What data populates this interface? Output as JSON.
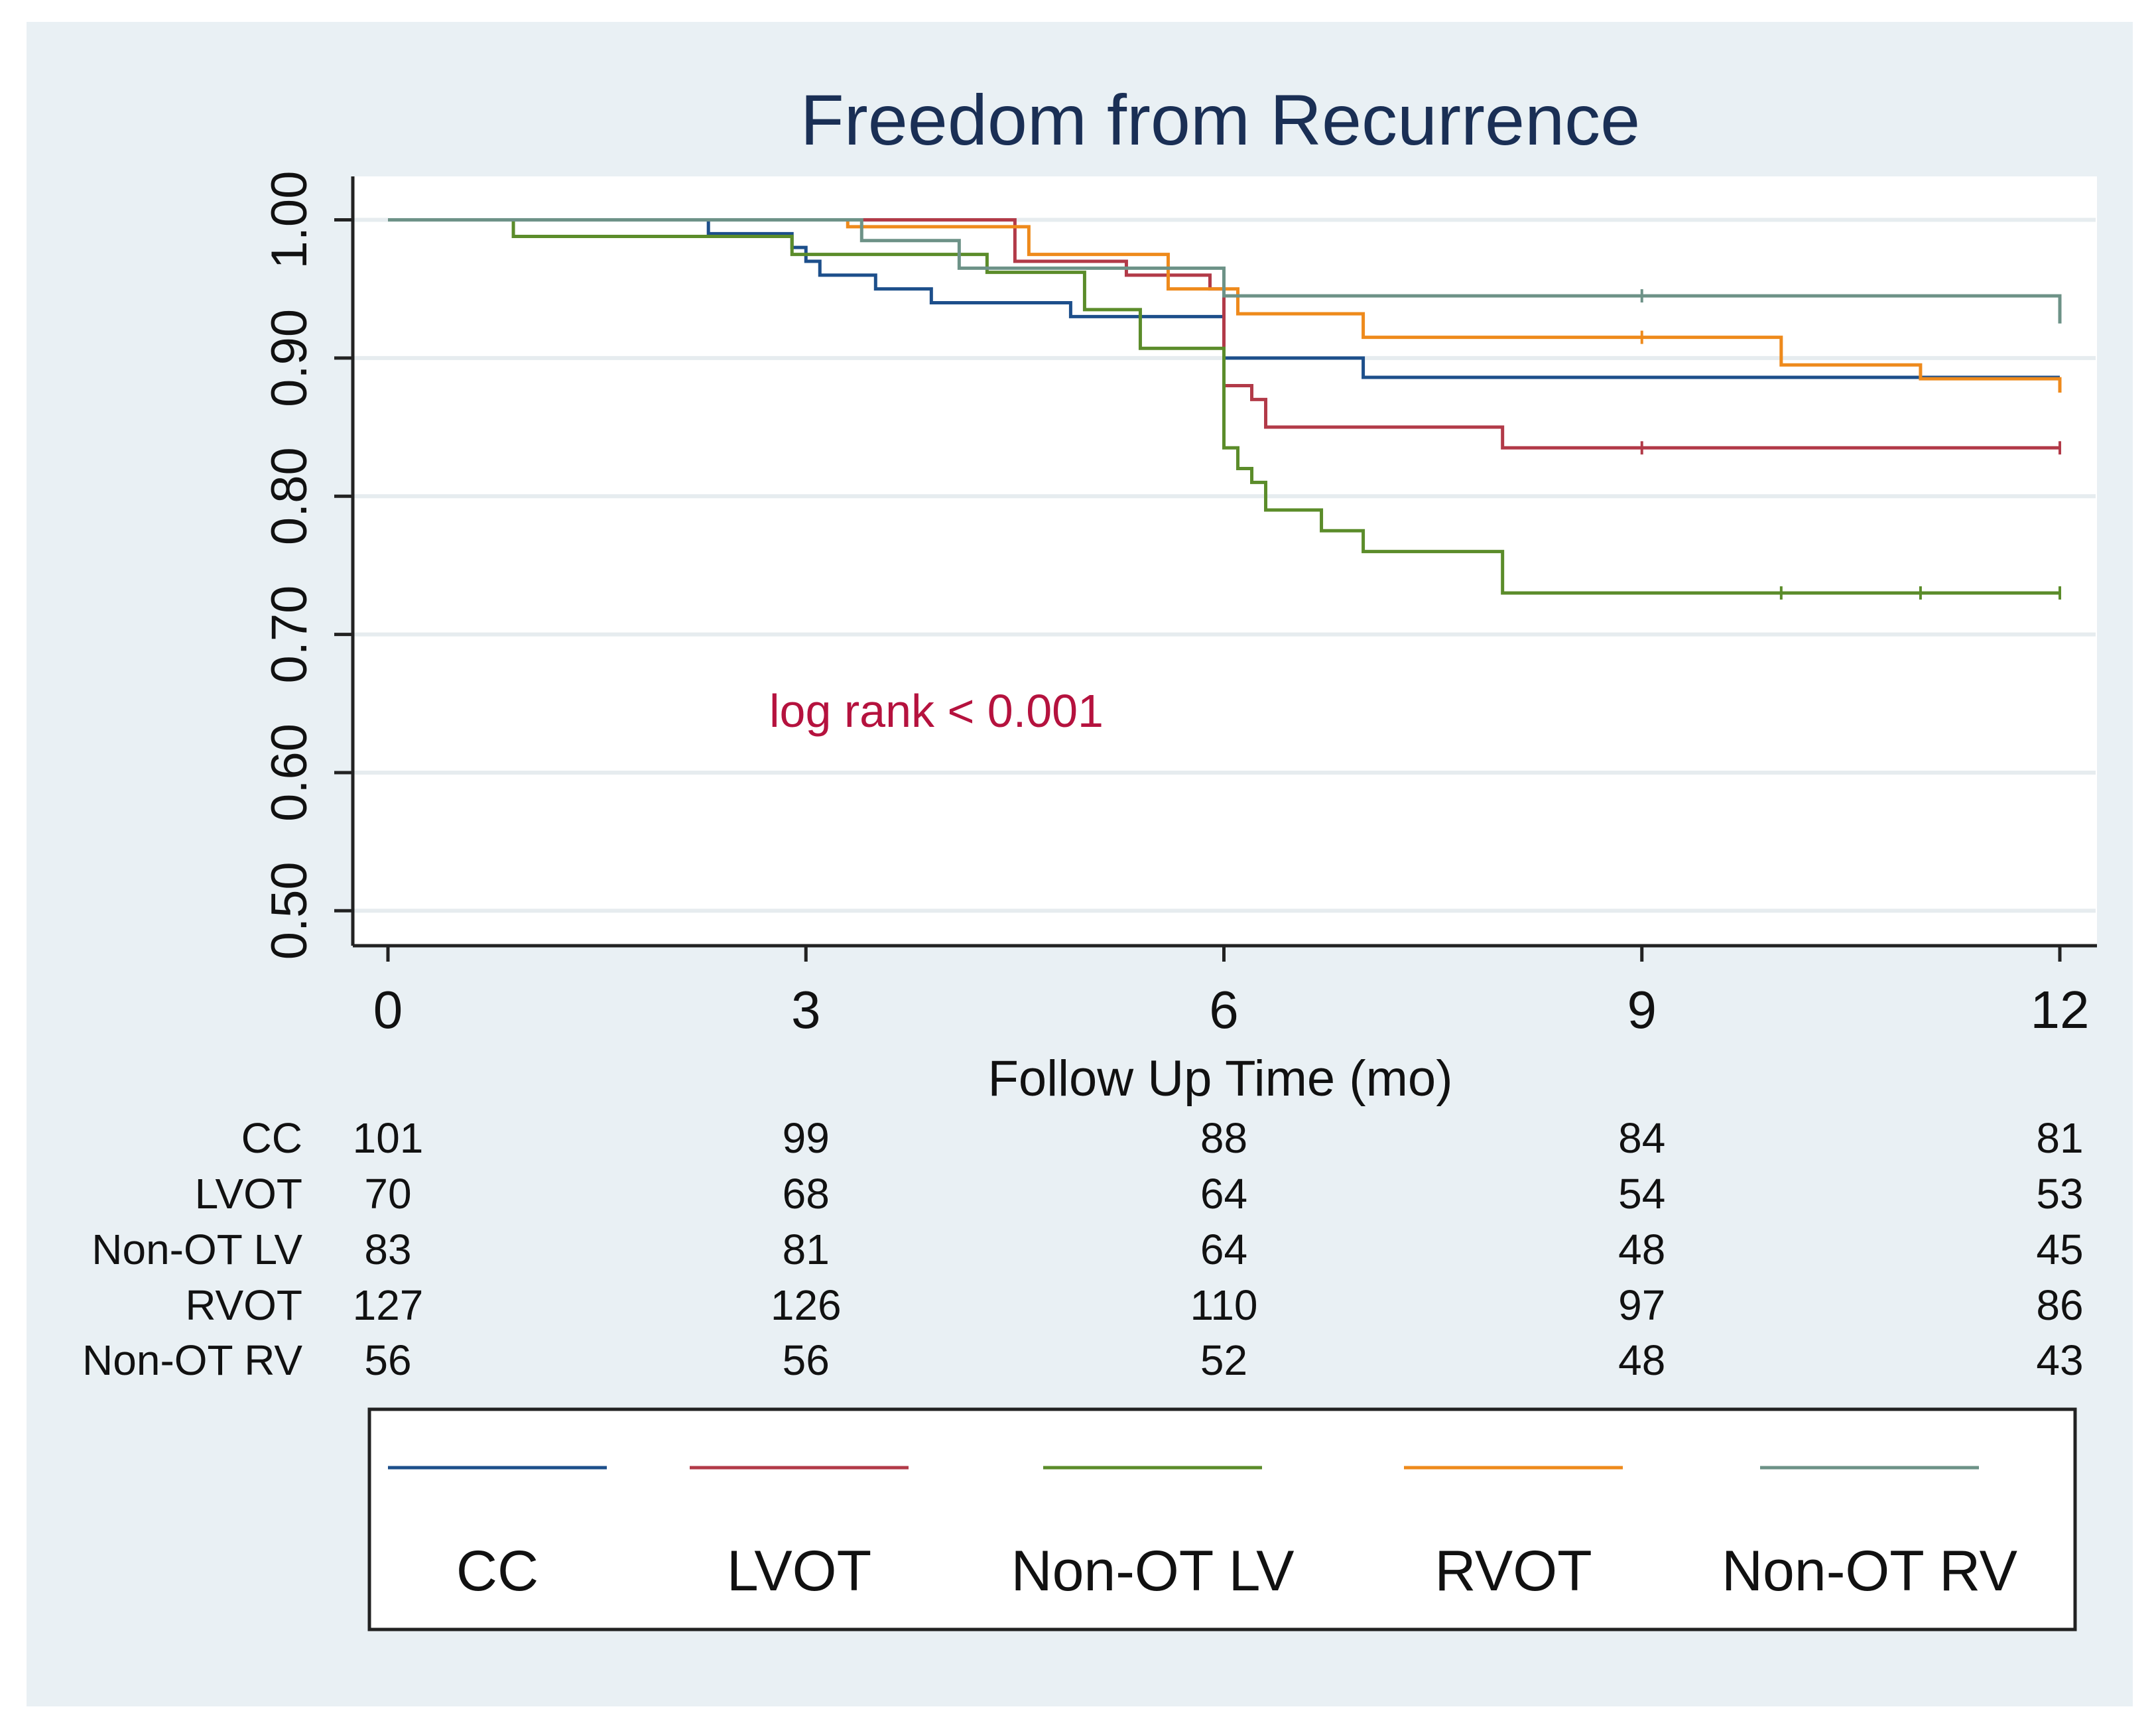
{
  "chart_data": {
    "type": "line",
    "subtype": "kaplan-meier step",
    "title": "Freedom from Recurrence",
    "xlabel": "Follow Up Time (mo)",
    "ylabel": "",
    "xlim": [
      0,
      12
    ],
    "ylim": [
      0.47,
      1.03
    ],
    "x_ticks": [
      0,
      3,
      6,
      9,
      12
    ],
    "y_ticks": [
      0.5,
      0.6,
      0.7,
      0.8,
      0.9,
      1.0
    ],
    "x_tick_labels": [
      "0",
      "3",
      "6",
      "9",
      "12"
    ],
    "y_tick_labels": [
      "0.50",
      "0.60",
      "0.70",
      "0.80",
      "0.90",
      "1.00"
    ],
    "grid": true,
    "annotation": "log rank < 0.001",
    "annotation_color": "#b5123e",
    "series": [
      {
        "name": "CC",
        "color": "#1d4f8b",
        "x": [
          0,
          2.3,
          2.9,
          3.0,
          3.1,
          3.5,
          3.9,
          4.9,
          6.0,
          7.0,
          12.0
        ],
        "y": [
          1.0,
          0.99,
          0.98,
          0.97,
          0.96,
          0.95,
          0.94,
          0.93,
          0.9,
          0.886,
          0.886
        ]
      },
      {
        "name": "LVOT",
        "color": "#b23a48",
        "x": [
          0,
          3.3,
          4.5,
          5.3,
          5.9,
          6.0,
          6.2,
          6.3,
          8.0,
          12.0
        ],
        "y": [
          1.0,
          1.0,
          0.97,
          0.96,
          0.95,
          0.88,
          0.87,
          0.85,
          0.835,
          0.835
        ],
        "censor_marks": [
          9.0,
          12.0
        ]
      },
      {
        "name": "Non-OT LV",
        "color": "#5b8c2a",
        "x": [
          0,
          0.9,
          2.9,
          4.3,
          5.0,
          5.4,
          6.0,
          6.1,
          6.2,
          6.3,
          6.7,
          7.0,
          8.0,
          12.0
        ],
        "y": [
          1.0,
          0.988,
          0.975,
          0.962,
          0.935,
          0.907,
          0.835,
          0.82,
          0.81,
          0.79,
          0.775,
          0.76,
          0.73,
          0.73
        ],
        "censor_marks": [
          10.0,
          11.0,
          12.0
        ]
      },
      {
        "name": "RVOT",
        "color": "#ee8a1c",
        "x": [
          0,
          3.3,
          4.6,
          5.6,
          6.1,
          7.0,
          10.0,
          11.0,
          12.0
        ],
        "y": [
          1.0,
          0.995,
          0.975,
          0.95,
          0.932,
          0.915,
          0.895,
          0.885,
          0.875
        ],
        "censor_marks": [
          9.0
        ]
      },
      {
        "name": "Non-OT RV",
        "color": "#6d9287",
        "x": [
          0,
          3.4,
          4.1,
          6.0,
          12.0
        ],
        "y": [
          1.0,
          0.985,
          0.965,
          0.945,
          0.925
        ],
        "censor_marks": [
          9.0
        ]
      }
    ]
  },
  "risk_table": {
    "times": [
      0,
      3,
      6,
      9,
      12
    ],
    "rows": [
      {
        "label": "CC",
        "counts": [
          "101",
          "99",
          "88",
          "84",
          "81"
        ]
      },
      {
        "label": "LVOT",
        "counts": [
          "70",
          "68",
          "64",
          "54",
          "53"
        ]
      },
      {
        "label": "Non-OT LV",
        "counts": [
          "83",
          "81",
          "64",
          "48",
          "45"
        ]
      },
      {
        "label": "RVOT",
        "counts": [
          "127",
          "126",
          "110",
          "97",
          "86"
        ]
      },
      {
        "label": "Non-OT RV",
        "counts": [
          "56",
          "56",
          "52",
          "48",
          "43"
        ]
      }
    ]
  },
  "legend": {
    "placement": "bottom",
    "items": [
      {
        "label": "CC",
        "color": "#1d4f8b"
      },
      {
        "label": "LVOT",
        "color": "#b23a48"
      },
      {
        "label": "Non-OT LV",
        "color": "#5b8c2a"
      },
      {
        "label": "RVOT",
        "color": "#ee8a1c"
      },
      {
        "label": "Non-OT RV",
        "color": "#6d9287"
      }
    ]
  }
}
